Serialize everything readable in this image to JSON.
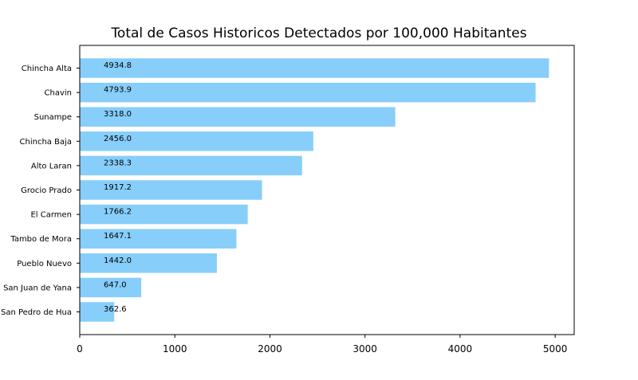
{
  "chart_data": {
    "type": "bar",
    "orientation": "horizontal",
    "title": "Total de Casos Historicos Detectados por 100,000 Habitantes",
    "xlabel": "",
    "ylabel": "",
    "categories": [
      "Chincha Alta",
      "Chavin",
      "Sunampe",
      "Chincha Baja",
      "Alto Laran",
      "Grocio Prado",
      "El Carmen",
      "Tambo de Mora",
      "Pueblo Nuevo",
      "San Juan de Yana",
      "San Pedro de Hua"
    ],
    "values": [
      4934.8,
      4793.9,
      3318.0,
      2456.0,
      2338.3,
      1917.2,
      1766.2,
      1647.1,
      1442.0,
      647.0,
      362.6
    ],
    "data_labels": [
      "4934.8",
      "4793.9",
      "3318.0",
      "2456.0",
      "2338.3",
      "1917.2",
      "1766.2",
      "1647.1",
      "1442.0",
      "647.0",
      "362.6"
    ],
    "xlim": [
      0,
      5200
    ],
    "xticks": [
      0,
      1000,
      2000,
      3000,
      4000,
      5000
    ],
    "xtick_labels": [
      "0",
      "1000",
      "2000",
      "3000",
      "4000",
      "5000"
    ],
    "grid": false,
    "legend": "none",
    "bar_color": "#87cefa"
  }
}
